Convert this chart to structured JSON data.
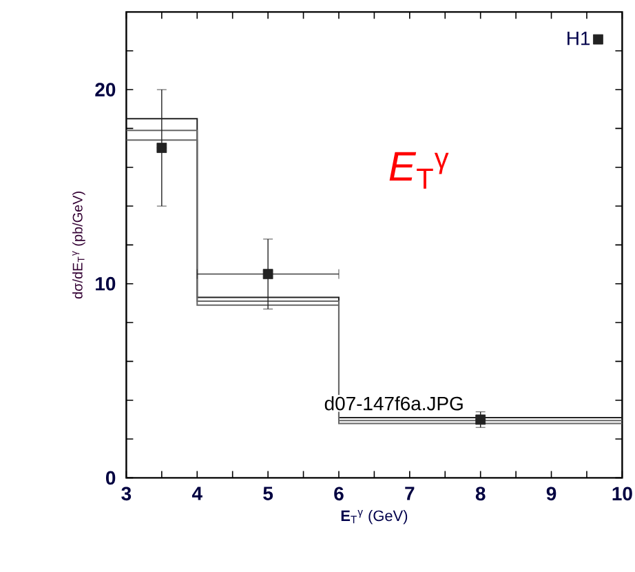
{
  "chart_data": {
    "type": "step",
    "xlabel": "**E**$_{T}$$^{γ}$ (GeV)",
    "ylabel": "dσ/dE$_{T}$$^{γ}$ (pb/GeV)",
    "xlim": [
      3,
      10
    ],
    "ylim": [
      0,
      24
    ],
    "xticks": [
      3,
      {
        "value": 3.5,
        "label": null
      },
      4,
      {
        "value": 4.5,
        "label": null
      },
      5,
      {
        "value": 5.5,
        "label": null
      },
      6,
      {
        "value": 6.5,
        "label": null
      },
      7,
      {
        "value": 7.5,
        "label": null
      },
      8,
      {
        "value": 8.5,
        "label": null
      },
      9,
      {
        "value": 9.5,
        "label": null
      },
      10
    ],
    "yticks": [
      0,
      {
        "value": 2,
        "label": null
      },
      {
        "value": 4,
        "label": null
      },
      {
        "value": 6,
        "label": null
      },
      {
        "value": 8,
        "label": null
      },
      10,
      {
        "value": 12,
        "label": null
      },
      {
        "value": 14,
        "label": null
      },
      {
        "value": 16,
        "label": null
      },
      {
        "value": 18,
        "label": null
      },
      20,
      {
        "value": 22,
        "label": null
      }
    ],
    "legend": "top right",
    "series": [
      {
        "color": "#222222",
        "x": [
          3,
          4,
          6,
          10
        ],
        "values": [
          18.5,
          9.3,
          3.1,
          3.1
        ]
      },
      {
        "color": "#666666",
        "x": [
          3,
          4,
          6,
          10
        ],
        "values": [
          17.9,
          9.1,
          2.95,
          2.95
        ]
      },
      {
        "color": "#666666",
        "x": [
          3,
          4,
          6,
          10
        ],
        "values": [
          17.4,
          8.9,
          2.8,
          2.8
        ]
      },
      {
        "type": "scatter",
        "name": "H1",
        "color": "#222222",
        "marker": "square",
        "x": [
          3.5,
          5,
          8
        ],
        "values": [
          17,
          10.5,
          3
        ],
        "errors": [
          3,
          1.8,
          0.4
        ],
        "xerrors": [
          null,
          1,
          null
        ]
      }
    ],
    "annotations": [
      "*E*$_{T}$$^{γ}$",
      "d07-147f6a.JPG"
    ]
  }
}
